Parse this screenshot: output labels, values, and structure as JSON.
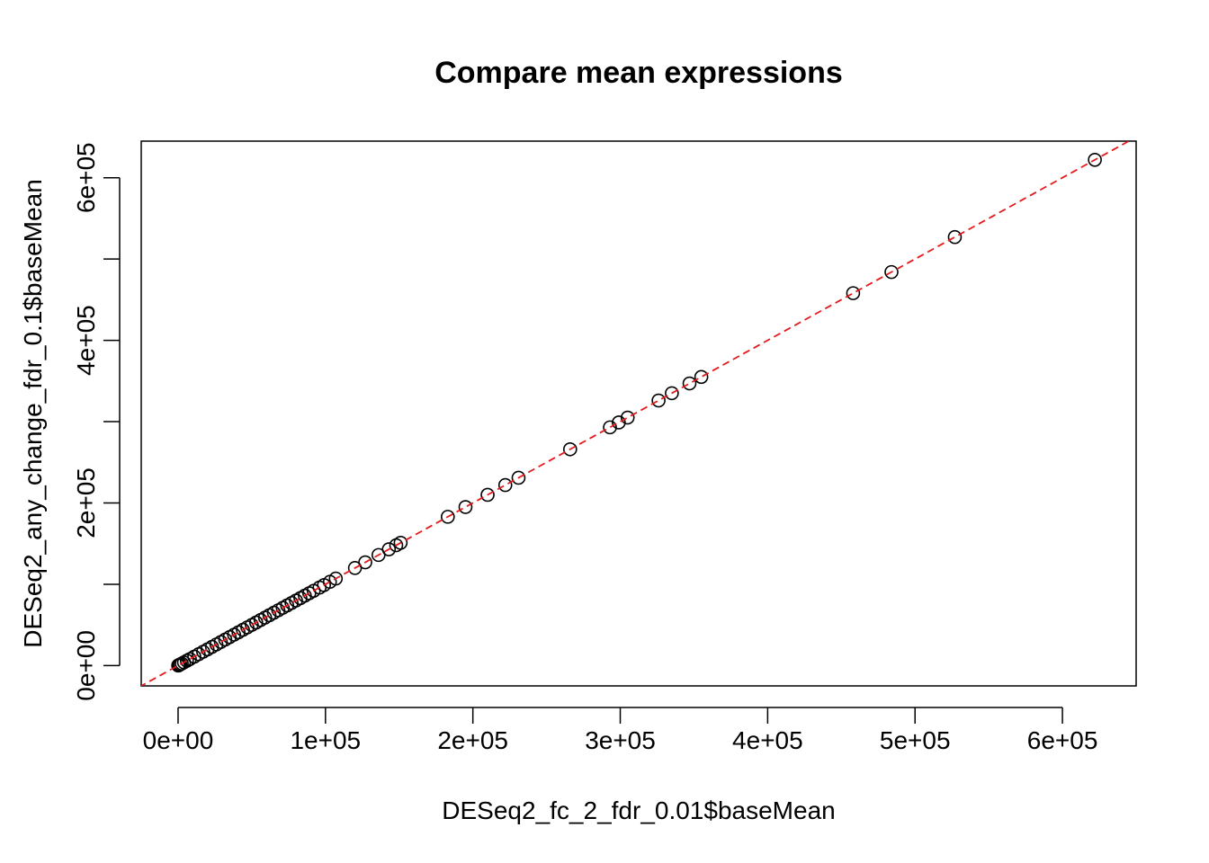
{
  "chart_data": {
    "type": "scatter",
    "title": "Compare mean expressions",
    "xlabel": "DESeq2_fc_2_fdr_0.01$baseMean",
    "ylabel": "DESeq2_any_change_fdr_0.1$baseMean",
    "xlim": [
      -25000,
      650000
    ],
    "ylim": [
      -25000,
      645000
    ],
    "x_ticks": [
      0,
      100000,
      200000,
      300000,
      400000,
      500000,
      600000
    ],
    "x_tick_labels": [
      "0e+00",
      "1e+05",
      "2e+05",
      "3e+05",
      "4e+05",
      "5e+05",
      "6e+05"
    ],
    "y_ticks": [
      0,
      100000,
      200000,
      300000,
      400000,
      500000,
      600000
    ],
    "y_tick_labels": [
      "0e+00",
      "",
      "2e+05",
      "",
      "4e+05",
      "",
      "6e+05"
    ],
    "reference_line": {
      "intercept": 0,
      "slope": 1,
      "color": "#e41a1c",
      "style": "dashed"
    },
    "marker": "open-circle",
    "grid": false,
    "points": [
      [
        622000,
        622000
      ],
      [
        527000,
        527000
      ],
      [
        484000,
        484000
      ],
      [
        458000,
        458000
      ],
      [
        355000,
        355000
      ],
      [
        347000,
        347000
      ],
      [
        335000,
        335000
      ],
      [
        326000,
        326000
      ],
      [
        305000,
        305000
      ],
      [
        299000,
        299000
      ],
      [
        293000,
        293000
      ],
      [
        266000,
        266000
      ],
      [
        231000,
        231000
      ],
      [
        222000,
        222000
      ],
      [
        210000,
        210000
      ],
      [
        195000,
        195000
      ],
      [
        183000,
        183000
      ],
      [
        151000,
        151000
      ],
      [
        148000,
        148000
      ],
      [
        143000,
        143000
      ],
      [
        136000,
        136000
      ],
      [
        127000,
        127000
      ],
      [
        120000,
        120000
      ],
      [
        107000,
        107000
      ],
      [
        103000,
        103000
      ],
      [
        99000,
        99000
      ],
      [
        96000,
        96000
      ],
      [
        92000,
        92000
      ],
      [
        89000,
        89000
      ],
      [
        86000,
        86000
      ],
      [
        83000,
        83000
      ],
      [
        80000,
        80000
      ],
      [
        77000,
        77000
      ],
      [
        74000,
        74000
      ],
      [
        71000,
        71000
      ],
      [
        68000,
        68000
      ],
      [
        65000,
        65000
      ],
      [
        62000,
        62000
      ],
      [
        59000,
        59000
      ],
      [
        56000,
        56000
      ],
      [
        53000,
        53000
      ],
      [
        50000,
        50000
      ],
      [
        47000,
        47000
      ],
      [
        44000,
        44000
      ],
      [
        41000,
        41000
      ],
      [
        38000,
        38000
      ],
      [
        35000,
        35000
      ],
      [
        32000,
        32000
      ],
      [
        29000,
        29000
      ],
      [
        26000,
        26000
      ],
      [
        23000,
        23000
      ],
      [
        20000,
        20000
      ],
      [
        17000,
        17000
      ],
      [
        14000,
        14000
      ],
      [
        11000,
        11000
      ],
      [
        8000,
        8000
      ],
      [
        6000,
        6000
      ],
      [
        4000,
        4000
      ],
      [
        2500,
        2500
      ],
      [
        1500,
        1500
      ],
      [
        800,
        800
      ],
      [
        300,
        300
      ],
      [
        100,
        100
      ]
    ]
  }
}
